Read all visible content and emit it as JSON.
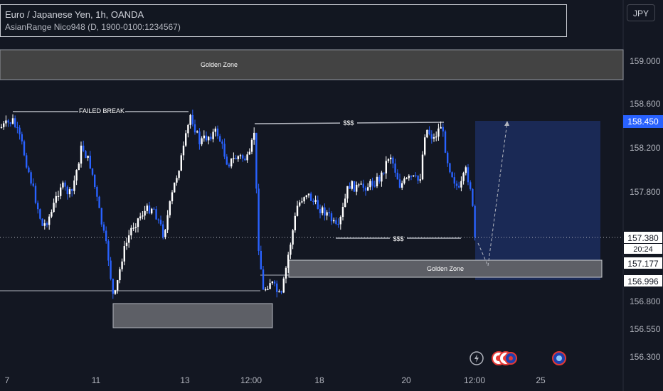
{
  "legend": {
    "title": "Euro / Japanese Yen, 1h, OANDA",
    "indicator": "AsianRange Nico948 (D, 1900-0100:1234567)"
  },
  "currency_button": "JPY",
  "price_axis": {
    "ticks": [
      "159.000",
      "158.600",
      "158.200",
      "157.800",
      "156.800",
      "156.550",
      "156.300"
    ],
    "tags": {
      "target": "158.450",
      "current": "157.380",
      "countdown": "20:24",
      "level_1": "157.177",
      "level_2": "156.996"
    }
  },
  "time_axis": {
    "ticks": [
      "7",
      "11",
      "13",
      "12:00",
      "18",
      "20",
      "12:00",
      "25"
    ]
  },
  "annotations": {
    "golden_zone_top": "Golden Zone",
    "golden_zone_right": "Golden Zone",
    "failed_break": "FAILED BREAK",
    "liquidity_top": "$$$",
    "liquidity_bottom": "$$$"
  },
  "icons": [
    "lightning-icon",
    "event-icon",
    "event-icon",
    "event-icon"
  ],
  "colors": {
    "background": "#131722",
    "candle_up": "#ffffff",
    "candle_down": "#2962ff",
    "zone_fill": "#424242",
    "target_box": "#1e3a8a"
  }
}
